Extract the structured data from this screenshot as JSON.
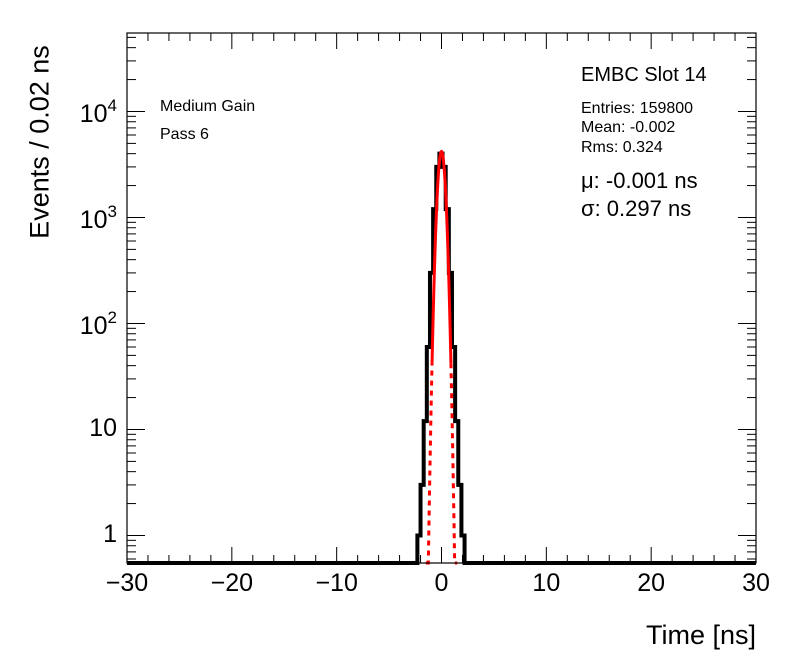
{
  "chart_data": {
    "type": "histogram",
    "xlabel": "Time [ns]",
    "ylabel": "Events / 0.02 ns",
    "xlim": [
      -30,
      30
    ],
    "ylim": [
      0.55,
      55000
    ],
    "yscale": "log",
    "grid": false,
    "xticks": [
      -30,
      -20,
      -10,
      0,
      10,
      20,
      30
    ],
    "xtick_labels": [
      "−30",
      "−20",
      "−10",
      "0",
      "10",
      "20",
      "30"
    ],
    "yticks": [
      {
        "value": 1,
        "base": "1",
        "exp": ""
      },
      {
        "value": 10,
        "base": "10",
        "exp": ""
      },
      {
        "value": 100,
        "base": "10",
        "exp": "2"
      },
      {
        "value": 1000,
        "base": "10",
        "exp": "3"
      },
      {
        "value": 10000,
        "base": "10",
        "exp": "4"
      }
    ],
    "histogram": {
      "color": "#000000",
      "bin_edges": [
        -2.3,
        -2.0,
        -1.7,
        -1.4,
        -1.1,
        -0.8,
        -0.5,
        -0.2,
        0.1,
        0.4,
        0.7,
        1.0,
        1.3,
        1.6,
        1.9,
        2.2
      ],
      "counts": [
        1,
        3,
        12,
        60,
        300,
        1200,
        3000,
        4000,
        3000,
        1200,
        300,
        60,
        12,
        3,
        1
      ]
    },
    "fit": {
      "type": "gaussian",
      "color": "#ff0000",
      "amplitude": 4200,
      "mean": -0.001,
      "sigma": 0.297,
      "solid_range": [
        -0.9,
        0.9
      ],
      "dashed_range": [
        -1.5,
        1.5
      ]
    },
    "annotations": {
      "label_line1": "Medium Gain",
      "label_line2": "Pass 6",
      "title": "EMBC Slot 14",
      "entries": "Entries: 159800",
      "mean": "Mean: -0.002",
      "rms": "Rms: 0.324",
      "mu": "μ: -0.001 ns",
      "sigma": "σ: 0.297 ns"
    }
  }
}
